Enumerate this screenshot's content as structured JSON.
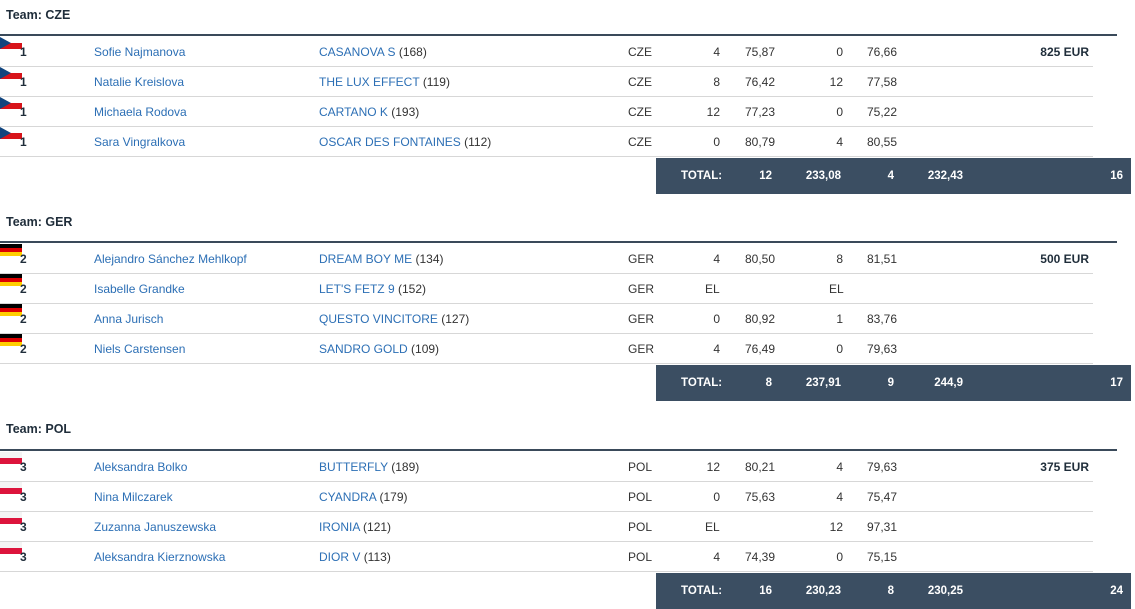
{
  "teams": [
    {
      "title": "Team: CZE",
      "flag": "flag-czech-republic-icon",
      "rows": [
        {
          "rank": "1",
          "rider": "Sofie Najmanova",
          "horse": "CASANOVA S",
          "horse_id": "(168)",
          "nat": "CZE",
          "p1": "4",
          "t1": "75,87",
          "p2": "0",
          "t2": "76,66",
          "prize": "825 EUR"
        },
        {
          "rank": "1",
          "rider": "Natalie Kreislova",
          "horse": "THE LUX EFFECT",
          "horse_id": "(119)",
          "nat": "CZE",
          "p1": "8",
          "t1": "76,42",
          "p2": "12",
          "t2": "77,58",
          "prize": ""
        },
        {
          "rank": "1",
          "rider": "Michaela Rodova",
          "horse": "CARTANO K",
          "horse_id": "(193)",
          "nat": "CZE",
          "p1": "12",
          "t1": "77,23",
          "p2": "0",
          "t2": "75,22",
          "prize": ""
        },
        {
          "rank": "1",
          "rider": "Sara Vingralkova",
          "horse": "OSCAR DES FONTAINES",
          "horse_id": "(112)",
          "nat": "CZE",
          "p1": "0",
          "t1": "80,79",
          "p2": "4",
          "t2": "80,55",
          "prize": ""
        }
      ],
      "total": {
        "label": "TOTAL:",
        "p1": "12",
        "t1": "233,08",
        "p2": "4",
        "t2": "232,43",
        "score": "16"
      }
    },
    {
      "title": "Team: GER",
      "flag": "flag-germany-icon",
      "rows": [
        {
          "rank": "2",
          "rider": "Alejandro Sánchez Mehlkopf",
          "horse": "DREAM BOY ME",
          "horse_id": "(134)",
          "nat": "GER",
          "p1": "4",
          "t1": "80,50",
          "p2": "8",
          "t2": "81,51",
          "prize": "500 EUR"
        },
        {
          "rank": "2",
          "rider": "Isabelle Grandke",
          "horse": "LET'S FETZ 9",
          "horse_id": "(152)",
          "nat": "GER",
          "p1": "EL",
          "t1": "",
          "p2": "EL",
          "t2": "",
          "prize": ""
        },
        {
          "rank": "2",
          "rider": "Anna Jurisch",
          "horse": "QUESTO VINCITORE",
          "horse_id": "(127)",
          "nat": "GER",
          "p1": "0",
          "t1": "80,92",
          "p2": "1",
          "t2": "83,76",
          "prize": ""
        },
        {
          "rank": "2",
          "rider": "Niels Carstensen",
          "horse": "SANDRO GOLD",
          "horse_id": "(109)",
          "nat": "GER",
          "p1": "4",
          "t1": "76,49",
          "p2": "0",
          "t2": "79,63",
          "prize": ""
        }
      ],
      "total": {
        "label": "TOTAL:",
        "p1": "8",
        "t1": "237,91",
        "p2": "9",
        "t2": "244,9",
        "score": "17"
      }
    },
    {
      "title": "Team: POL",
      "flag": "flag-poland-icon",
      "rows": [
        {
          "rank": "3",
          "rider": "Aleksandra Bolko",
          "horse": "BUTTERFLY",
          "horse_id": "(189)",
          "nat": "POL",
          "p1": "12",
          "t1": "80,21",
          "p2": "4",
          "t2": "79,63",
          "prize": "375 EUR"
        },
        {
          "rank": "3",
          "rider": "Nina Milczarek",
          "horse": "CYANDRA",
          "horse_id": "(179)",
          "nat": "POL",
          "p1": "0",
          "t1": "75,63",
          "p2": "4",
          "t2": "75,47",
          "prize": ""
        },
        {
          "rank": "3",
          "rider": "Zuzanna Januszewska",
          "horse": "IRONIA",
          "horse_id": "(121)",
          "nat": "POL",
          "p1": "EL",
          "t1": "",
          "p2": "12",
          "t2": "97,31",
          "prize": ""
        },
        {
          "rank": "3",
          "rider": "Aleksandra Kierznowska",
          "horse": "DIOR V",
          "horse_id": "(113)",
          "nat": "POL",
          "p1": "4",
          "t1": "74,39",
          "p2": "0",
          "t2": "75,15",
          "prize": ""
        }
      ],
      "total": {
        "label": "TOTAL:",
        "p1": "16",
        "t1": "230,23",
        "p2": "8",
        "t2": "230,25",
        "score": "24"
      }
    }
  ],
  "colors": {
    "link": "#2c6fb5",
    "total_bar": "#3b4e62",
    "rule": "#3a4a5a"
  }
}
